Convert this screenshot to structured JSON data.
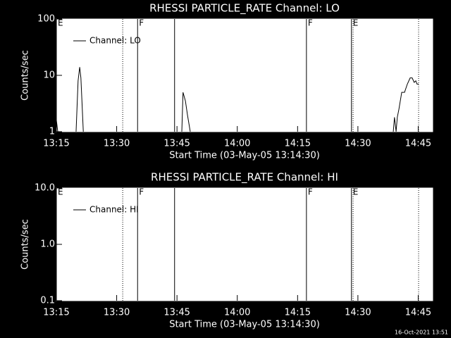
{
  "chart_data": [
    {
      "type": "line",
      "title": "RHESSI PARTICLE_RATE Channel: LO",
      "xlabel": "Start Time (03-May-05 13:14:30)",
      "ylabel": "Counts/sec",
      "log_y": true,
      "ylim": [
        1,
        100
      ],
      "yticks": [
        1,
        10,
        100
      ],
      "xlim": [
        15,
        108.6
      ],
      "xticks": [
        {
          "value": 15,
          "label": "13:15"
        },
        {
          "value": 30,
          "label": "13:30"
        },
        {
          "value": 45,
          "label": "13:45"
        },
        {
          "value": 60,
          "label": "14:00"
        },
        {
          "value": 75,
          "label": "14:15"
        },
        {
          "value": 90,
          "label": "14:30"
        },
        {
          "value": 105,
          "label": "14:45"
        }
      ],
      "flags": [
        {
          "x": 15,
          "label": "E"
        },
        {
          "x": 35.2,
          "label": "F"
        },
        {
          "x": 77.2,
          "label": "F"
        },
        {
          "x": 88.4,
          "label": "E"
        }
      ],
      "lines": [
        {
          "x": 44.4,
          "style": "solid"
        },
        {
          "x": 31.5,
          "style": "dotted"
        },
        {
          "x": 88.8,
          "style": "dotted"
        },
        {
          "x": 105.1,
          "style": "dotted"
        }
      ],
      "series": [
        {
          "name": "Channel: LO",
          "color": "#000000",
          "x": [
            15,
            15.35,
            null,
            19.9,
            20.4,
            20.8,
            21.1,
            21.7,
            null,
            46.2,
            46.5,
            47.1,
            47.6,
            48.3,
            null,
            98.8,
            99.1,
            99.5,
            99.8,
            100.2,
            100.9,
            101.6,
            102.3,
            103.0,
            103.5,
            104.0,
            104.4,
            104.7,
            105.1
          ],
          "values": [
            1.6,
            1,
            null,
            1,
            8,
            14,
            9,
            1,
            null,
            1,
            5,
            3.5,
            2,
            1,
            null,
            1,
            1.8,
            1,
            1.8,
            2.5,
            5,
            5,
            7,
            9,
            9,
            7.5,
            8,
            7,
            7
          ]
        }
      ]
    },
    {
      "type": "line",
      "title": "RHESSI PARTICLE_RATE Channel: HI",
      "xlabel": "Start Time (03-May-05 13:14:30)",
      "ylabel": "Counts/sec",
      "log_y": true,
      "ylim": [
        0.1,
        10
      ],
      "yticks": [
        0.1,
        {
          "value": 1,
          "label": "1.0"
        },
        {
          "value": 10,
          "label": "10.0"
        }
      ],
      "xlim": [
        15,
        108.6
      ],
      "xticks": [
        {
          "value": 15,
          "label": "13:15"
        },
        {
          "value": 30,
          "label": "13:30"
        },
        {
          "value": 45,
          "label": "13:45"
        },
        {
          "value": 60,
          "label": "14:00"
        },
        {
          "value": 75,
          "label": "14:15"
        },
        {
          "value": 90,
          "label": "14:30"
        },
        {
          "value": 105,
          "label": "14:45"
        }
      ],
      "flags": [
        {
          "x": 15,
          "label": "E"
        },
        {
          "x": 35.2,
          "label": "F"
        },
        {
          "x": 77.2,
          "label": "F"
        },
        {
          "x": 88.4,
          "label": "E"
        }
      ],
      "lines": [
        {
          "x": 44.4,
          "style": "solid"
        },
        {
          "x": 31.5,
          "style": "dotted"
        },
        {
          "x": 88.8,
          "style": "dotted"
        },
        {
          "x": 105.1,
          "style": "dotted"
        }
      ],
      "series": [
        {
          "name": "Channel: HI",
          "color": "#000000",
          "x": [],
          "values": []
        }
      ]
    }
  ],
  "footer": "16-Oct-2021 13:51"
}
